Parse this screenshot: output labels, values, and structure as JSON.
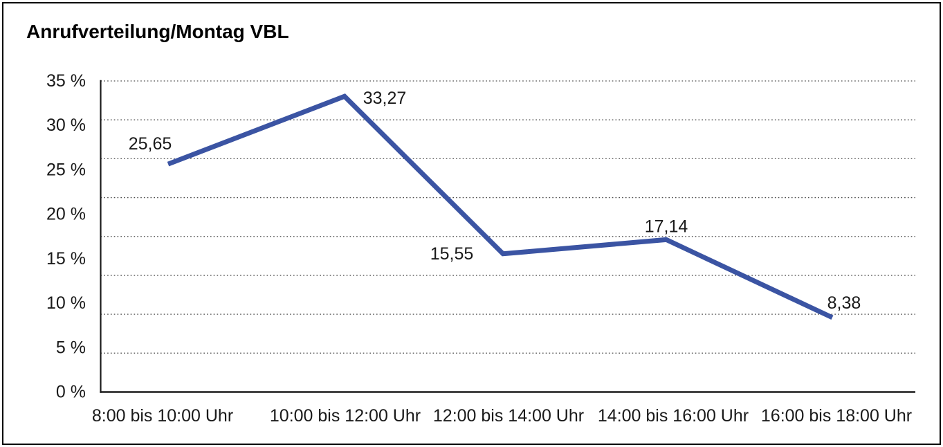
{
  "page": {
    "background": "#ffffff",
    "border_color": "#000000"
  },
  "chart_data": {
    "type": "line",
    "title": "Anrufverteilung/Montag VBL",
    "categories": [
      "8:00 bis 10:00 Uhr",
      "10:00 bis 12:00 Uhr",
      "12:00 bis 14:00 Uhr",
      "14:00 bis 16:00 Uhr",
      "16:00 bis 18:00 Uhr"
    ],
    "values": [
      25.65,
      33.27,
      15.55,
      17.14,
      8.38
    ],
    "value_labels": [
      "25,65",
      "33,27",
      "15,55",
      "17,14",
      "8,38"
    ],
    "xlabel": "",
    "ylabel": "",
    "ylim": [
      0,
      35
    ],
    "y_ticks": [
      {
        "value": 35,
        "label": "35 %"
      },
      {
        "value": 30,
        "label": "30 %"
      },
      {
        "value": 25,
        "label": "25 %"
      },
      {
        "value": 20,
        "label": "20 %"
      },
      {
        "value": 15,
        "label": "15 %"
      },
      {
        "value": 10,
        "label": "10 %"
      },
      {
        "value": 5,
        "label": "5 %"
      },
      {
        "value": 0,
        "label": "0 %"
      }
    ],
    "grid": "horizontal dotted",
    "legend": "none",
    "line_color": "#3B54A3",
    "axis_color": "#1a1a1a",
    "grid_color": "#4d4d4d",
    "text_color": "#1a1a1a"
  }
}
